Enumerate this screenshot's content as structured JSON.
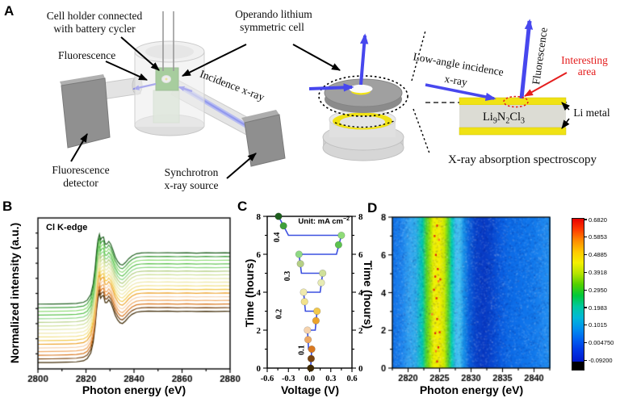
{
  "panels": {
    "a": "A",
    "b": "B",
    "c": "C",
    "d": "D"
  },
  "panelA": {
    "labels": {
      "cell_holder": [
        "Cell holder connected",
        "with battery cycler"
      ],
      "fluorescence_left": "Fluorescence",
      "operando": [
        "Operando lithium",
        "symmetric cell"
      ],
      "incidence_xray": "Incidence x-ray",
      "fluorescence_detector": [
        "Fluorescence",
        "detector"
      ],
      "synchrotron": [
        "Synchrotron",
        "x-ray source"
      ],
      "low_angle": [
        "Low-angle incidence",
        "x-ray"
      ],
      "fluorescence_right": "Fluorescence",
      "interesting_area": [
        "Interesting",
        "area"
      ],
      "formula": [
        "Li",
        "9",
        "N",
        "2",
        "Cl",
        "3"
      ],
      "li_metal": "Li metal",
      "caption": "X-ray absorption spectroscopy"
    },
    "colors": {
      "blue": "#4747ee",
      "red": "#e41e1e",
      "yellow": "#f0e214",
      "holder_green": "#3f9d28"
    }
  },
  "chart_data": [
    {
      "id": "B",
      "type": "line",
      "annotation": "Cl K-edge",
      "xlabel": "Photon energy (eV)",
      "ylabel": "Normalized intensity (a.u.)",
      "xlim": [
        2800,
        2880
      ],
      "xticks": [
        2800,
        2820,
        2840,
        2860,
        2880
      ],
      "xticks_minor": [
        2810,
        2830,
        2850,
        2870
      ],
      "n_curves": 17,
      "base_curve_x": [
        2800,
        2806,
        2812,
        2816,
        2819,
        2820.5,
        2822,
        2823,
        2823.8,
        2824.4,
        2825,
        2825.6,
        2826.1,
        2826.6,
        2827.3,
        2828.0,
        2828.7,
        2829.5,
        2830.3,
        2831.2,
        2832.2,
        2833.2,
        2834.2,
        2835.2,
        2836.4,
        2837.8,
        2839.2,
        2841,
        2843,
        2846,
        2850,
        2854,
        2858,
        2862,
        2866,
        2870,
        2874,
        2878,
        2880
      ],
      "base_curve_y": [
        0.015,
        0.016,
        0.02,
        0.025,
        0.04,
        0.07,
        0.15,
        0.3,
        0.52,
        0.75,
        0.92,
        1.0,
        0.92,
        0.95,
        0.96,
        0.86,
        0.86,
        0.9,
        0.86,
        0.78,
        0.68,
        0.615,
        0.575,
        0.565,
        0.6,
        0.655,
        0.695,
        0.725,
        0.735,
        0.74,
        0.737,
        0.74,
        0.735,
        0.739,
        0.734,
        0.738,
        0.735,
        0.738,
        0.736
      ],
      "baseline_start": 0.035,
      "baseline_step": 0.0242,
      "amplitude": 0.47,
      "colors_bottom_to_top": [
        "#3f2a04",
        "#7a4410",
        "#d97820",
        "#efa963",
        "#f6d3ad",
        "#eda32b",
        "#f2c84b",
        "#f2e28c",
        "#efe9ad",
        "#e7ebb4",
        "#cfe09a",
        "#b5cf85",
        "#8fd985",
        "#5cc24e",
        "#8fdc78",
        "#3fa03c",
        "#1e5f1e"
      ]
    },
    {
      "id": "C",
      "type": "line+scatter",
      "unit_prefix": "Unit: mA cm",
      "unit_sup": "−2",
      "xlabel": "Voltage (V)",
      "ylabel_left": "Time (hours)",
      "xlim": [
        -0.6,
        0.6
      ],
      "xtick_values": [
        -0.6,
        -0.3,
        0.0,
        0.3,
        0.6
      ],
      "xtick_labels": [
        "-0.6",
        "-0.3",
        "0.0",
        "0.3",
        "0.6"
      ],
      "xticks_minor": [
        -0.45,
        -0.15,
        0.15,
        0.45
      ],
      "ylim": [
        0,
        8
      ],
      "ytick_values": [
        0,
        2,
        4,
        6,
        8
      ],
      "ytick_labels": [
        "0",
        "2",
        "4",
        "6",
        "8"
      ],
      "yticks_minor": [
        1,
        3,
        5,
        7
      ],
      "line_color": "#3c50e0",
      "line_path_tv": [
        [
          0,
          0.015
        ],
        [
          1,
          0.03
        ],
        [
          1,
          -0.015
        ],
        [
          2,
          -0.03
        ],
        [
          2,
          0.08
        ],
        [
          3,
          0.105
        ],
        [
          3,
          -0.06
        ],
        [
          4,
          -0.085
        ],
        [
          4,
          0.15
        ],
        [
          5,
          0.185
        ],
        [
          5,
          -0.115
        ],
        [
          6,
          -0.15
        ],
        [
          6,
          0.38
        ],
        [
          7,
          0.45
        ],
        [
          7,
          -0.3
        ],
        [
          8,
          -0.44
        ]
      ],
      "points_t": [
        0,
        0.5,
        1,
        1.5,
        2,
        2.5,
        3,
        3.5,
        4,
        4.5,
        5,
        5.5,
        6,
        6.5,
        7,
        7.5,
        8
      ],
      "points_v": [
        0.015,
        0.022,
        0.03,
        -0.022,
        -0.03,
        0.09,
        0.105,
        -0.072,
        -0.085,
        0.165,
        0.185,
        -0.13,
        -0.15,
        0.41,
        0.45,
        -0.37,
        -0.44
      ],
      "point_colors": [
        "#3f2a04",
        "#7a4410",
        "#d97820",
        "#efa963",
        "#f6d3ad",
        "#eda32b",
        "#f2c84b",
        "#f2e28c",
        "#efe9ad",
        "#e7ebb4",
        "#cfe09a",
        "#b5cf85",
        "#8fd985",
        "#5cc24e",
        "#8fdc78",
        "#3fa03c",
        "#1e5f1e"
      ],
      "current_labels": [
        {
          "text": "0.1",
          "v": -0.08,
          "t": 0.95
        },
        {
          "text": "0.2",
          "v": -0.4,
          "t": 2.85
        },
        {
          "text": "0.3",
          "v": -0.28,
          "t": 4.85
        },
        {
          "text": "0.4",
          "v": -0.43,
          "t": 6.9
        }
      ]
    },
    {
      "id": "D",
      "type": "heatmap",
      "xlabel": "Photon energy (eV)",
      "ylabel": "Time (hours)",
      "xlim": [
        2817.5,
        2842.5
      ],
      "xticks": [
        2820,
        2825,
        2830,
        2835,
        2840
      ],
      "xticks_minor": [
        2817.5,
        2822.5,
        2827.5,
        2832.5,
        2837.5,
        2842.5
      ],
      "ylim": [
        0,
        8
      ],
      "ytick_values": [
        0,
        2,
        4,
        6,
        8
      ],
      "ytick_labels": [
        "0",
        "2",
        "4",
        "6",
        "8"
      ],
      "yticks_minor": [
        1,
        3,
        5,
        7
      ],
      "column_stops": [
        {
          "e": 2817.5,
          "c": "#1272e8"
        },
        {
          "e": 2819.0,
          "c": "#1e86ee"
        },
        {
          "e": 2820.3,
          "c": "#34a6f0"
        },
        {
          "e": 2821.2,
          "c": "#2aabe8"
        },
        {
          "e": 2822.2,
          "c": "#00c8ae"
        },
        {
          "e": 2822.9,
          "c": "#55d522"
        },
        {
          "e": 2823.5,
          "c": "#aae400"
        },
        {
          "e": 2824.0,
          "c": "#eef000"
        },
        {
          "e": 2825.0,
          "c": "#f2ee00"
        },
        {
          "e": 2825.7,
          "c": "#c4e800"
        },
        {
          "e": 2826.3,
          "c": "#55d52a"
        },
        {
          "e": 2826.9,
          "c": "#00cdb4"
        },
        {
          "e": 2827.5,
          "c": "#3cbcf0"
        },
        {
          "e": 2828.1,
          "c": "#46c2f0"
        },
        {
          "e": 2828.8,
          "c": "#1690e8"
        },
        {
          "e": 2829.6,
          "c": "#0a62dc"
        },
        {
          "e": 2830.6,
          "c": "#0844cc"
        },
        {
          "e": 2832.0,
          "c": "#083ac4"
        },
        {
          "e": 2833.4,
          "c": "#0848d0"
        },
        {
          "e": 2834.6,
          "c": "#0a5ce0"
        },
        {
          "e": 2836.0,
          "c": "#0c6ae6"
        },
        {
          "e": 2838.0,
          "c": "#0e72ea"
        },
        {
          "e": 2840.0,
          "c": "#127aec"
        },
        {
          "e": 2841.5,
          "c": "#1e88f0"
        },
        {
          "e": 2842.5,
          "c": "#2290f0"
        }
      ],
      "speckles": [
        {
          "e": 2824.6,
          "t": 7.55,
          "c": "#e02810"
        },
        {
          "e": 2824.2,
          "t": 7.0,
          "c": "#e02810"
        },
        {
          "e": 2824.9,
          "t": 6.8,
          "c": "#ff7820"
        },
        {
          "e": 2824.4,
          "t": 6.0,
          "c": "#e02810"
        },
        {
          "e": 2824.7,
          "t": 5.25,
          "c": "#e02810"
        },
        {
          "e": 2824.3,
          "t": 4.85,
          "c": "#e02810"
        },
        {
          "e": 2824.8,
          "t": 4.6,
          "c": "#ff7820"
        },
        {
          "e": 2824.1,
          "t": 4.15,
          "c": "#e02810"
        },
        {
          "e": 2824.5,
          "t": 3.7,
          "c": "#e02810"
        },
        {
          "e": 2823.8,
          "t": 2.85,
          "c": "#ff7820"
        },
        {
          "e": 2824.6,
          "t": 2.6,
          "c": "#e02810"
        },
        {
          "e": 2824.3,
          "t": 1.85,
          "c": "#e02810"
        },
        {
          "e": 2824.8,
          "t": 1.1,
          "c": "#e02810"
        },
        {
          "e": 2824.4,
          "t": 0.9,
          "c": "#ff7820"
        },
        {
          "e": 2824.6,
          "t": 0.35,
          "c": "#e02810"
        },
        {
          "e": 2825.1,
          "t": 4.7,
          "c": "#e02810"
        },
        {
          "e": 2825.0,
          "t": 1.9,
          "c": "#e02810"
        }
      ],
      "colorbar": {
        "labels": [
          "0.6820",
          "0.5853",
          "0.4885",
          "0.3918",
          "0.2950",
          "0.1983",
          "0.1015",
          "0.004750",
          "-0.09200"
        ],
        "gradient": [
          "#e80000",
          "#ff3c00",
          "#ff8c00",
          "#ffc800",
          "#f4f000",
          "#b4e400",
          "#50d000",
          "#00c83c",
          "#00c8a0",
          "#00b8d8",
          "#0090ee",
          "#0060f0",
          "#0034e4",
          "#0018cc"
        ],
        "under_color": "#000000"
      }
    }
  ]
}
